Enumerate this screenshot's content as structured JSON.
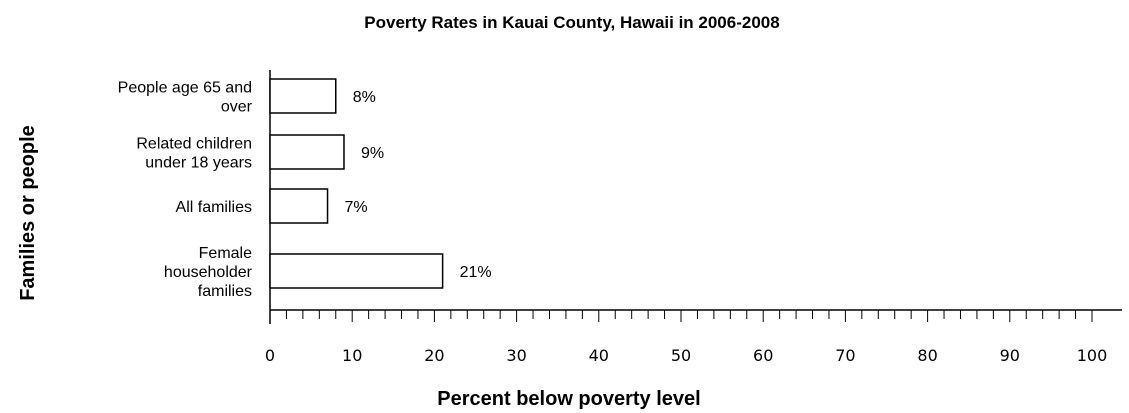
{
  "chart_data": {
    "type": "bar",
    "orientation": "horizontal",
    "title": "Poverty Rates in Kauai County, Hawaii in 2006-2008",
    "xlabel": "Percent below poverty level",
    "ylabel": "Families or people",
    "categories": [
      [
        "People age 65 and",
        "over"
      ],
      [
        "Related children",
        "under 18 years"
      ],
      [
        "All families"
      ],
      [
        "Female",
        "householder",
        "families"
      ]
    ],
    "values": [
      8,
      9,
      7,
      21
    ],
    "value_labels": [
      "8%",
      "9%",
      "7%",
      "21%"
    ],
    "xlim": [
      0,
      100
    ],
    "xticks": [
      0,
      10,
      20,
      30,
      40,
      50,
      60,
      70,
      80,
      90,
      100
    ],
    "minor_tick_step": 2,
    "grid": false,
    "legend": "none",
    "bar_fill": "#ffffff",
    "bar_stroke": "#000000"
  }
}
